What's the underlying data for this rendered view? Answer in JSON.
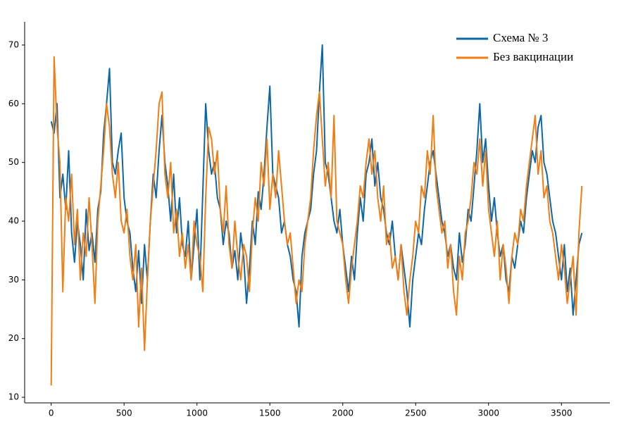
{
  "chart_data": {
    "type": "line",
    "x": [
      0,
      20,
      40,
      60,
      80,
      100,
      120,
      140,
      160,
      180,
      200,
      220,
      240,
      260,
      280,
      300,
      320,
      340,
      360,
      380,
      400,
      420,
      440,
      460,
      480,
      500,
      520,
      540,
      560,
      580,
      600,
      620,
      640,
      660,
      680,
      700,
      720,
      740,
      760,
      780,
      800,
      820,
      840,
      860,
      880,
      900,
      920,
      940,
      960,
      980,
      1000,
      1020,
      1040,
      1060,
      1080,
      1100,
      1120,
      1140,
      1160,
      1180,
      1200,
      1220,
      1240,
      1260,
      1280,
      1300,
      1320,
      1340,
      1360,
      1380,
      1400,
      1420,
      1440,
      1460,
      1480,
      1500,
      1520,
      1540,
      1560,
      1580,
      1600,
      1620,
      1640,
      1660,
      1680,
      1700,
      1720,
      1740,
      1760,
      1780,
      1800,
      1820,
      1840,
      1860,
      1880,
      1900,
      1920,
      1940,
      1960,
      1980,
      2000,
      2020,
      2040,
      2060,
      2080,
      2100,
      2120,
      2140,
      2160,
      2180,
      2200,
      2220,
      2240,
      2260,
      2280,
      2300,
      2320,
      2340,
      2360,
      2380,
      2400,
      2420,
      2440,
      2460,
      2480,
      2500,
      2520,
      2540,
      2560,
      2580,
      2600,
      2620,
      2640,
      2660,
      2680,
      2700,
      2720,
      2740,
      2760,
      2780,
      2800,
      2820,
      2840,
      2860,
      2880,
      2900,
      2920,
      2940,
      2960,
      2980,
      3000,
      3020,
      3040,
      3060,
      3080,
      3100,
      3120,
      3140,
      3160,
      3180,
      3200,
      3220,
      3240,
      3260,
      3280,
      3300,
      3320,
      3340,
      3360,
      3380,
      3400,
      3420,
      3440,
      3460,
      3480,
      3500,
      3520,
      3540,
      3560,
      3580,
      3600,
      3620,
      3640
    ],
    "series": [
      {
        "name": "Схема № 3",
        "color": "#0b67a8",
        "values": [
          57,
          55,
          60,
          44,
          48,
          42,
          52,
          38,
          33,
          40,
          36,
          30,
          42,
          35,
          38,
          33,
          42,
          45,
          55,
          60,
          66,
          50,
          48,
          52,
          55,
          44,
          40,
          38,
          32,
          28,
          35,
          26,
          36,
          30,
          40,
          48,
          44,
          52,
          58,
          50,
          46,
          40,
          48,
          38,
          44,
          36,
          34,
          40,
          30,
          36,
          42,
          30,
          45,
          60,
          52,
          48,
          50,
          44,
          42,
          36,
          40,
          38,
          32,
          35,
          30,
          38,
          34,
          26,
          32,
          40,
          36,
          45,
          42,
          48,
          56,
          63,
          48,
          46,
          44,
          38,
          40,
          36,
          34,
          30,
          28,
          22,
          34,
          38,
          40,
          42,
          48,
          52,
          62,
          70,
          50,
          48,
          44,
          40,
          38,
          42,
          36,
          32,
          28,
          34,
          30,
          38,
          44,
          40,
          48,
          50,
          54,
          46,
          50,
          44,
          42,
          38,
          36,
          40,
          34,
          30,
          36,
          32,
          28,
          22,
          30,
          34,
          38,
          36,
          42,
          46,
          50,
          52,
          48,
          44,
          40,
          38,
          34,
          36,
          32,
          30,
          38,
          33,
          36,
          42,
          40,
          46,
          52,
          60,
          50,
          54,
          46,
          40,
          44,
          38,
          34,
          36,
          30,
          28,
          34,
          32,
          36,
          40,
          38,
          44,
          48,
          52,
          50,
          56,
          58,
          50,
          48,
          44,
          40,
          38,
          34,
          30,
          36,
          28,
          32,
          24,
          30,
          36,
          38
        ]
      },
      {
        "name": "Без вакцинации",
        "color": "#f27d12",
        "values": [
          12,
          68,
          56,
          50,
          28,
          44,
          40,
          48,
          36,
          42,
          30,
          38,
          34,
          44,
          36,
          26,
          40,
          46,
          52,
          60,
          56,
          48,
          44,
          50,
          40,
          38,
          42,
          34,
          30,
          36,
          22,
          32,
          18,
          30,
          40,
          46,
          52,
          60,
          62,
          48,
          44,
          50,
          38,
          42,
          34,
          38,
          32,
          36,
          30,
          40,
          36,
          34,
          28,
          44,
          56,
          54,
          48,
          52,
          42,
          38,
          46,
          36,
          32,
          40,
          34,
          30,
          36,
          34,
          28,
          38,
          44,
          40,
          50,
          46,
          54,
          42,
          48,
          44,
          52,
          46,
          40,
          36,
          38,
          32,
          26,
          30,
          28,
          36,
          40,
          44,
          52,
          58,
          62,
          54,
          46,
          50,
          44,
          58,
          40,
          38,
          36,
          30,
          26,
          32,
          36,
          40,
          46,
          44,
          50,
          54,
          48,
          52,
          44,
          40,
          46,
          36,
          38,
          32,
          34,
          30,
          36,
          28,
          24,
          30,
          34,
          40,
          38,
          46,
          44,
          52,
          48,
          58,
          46,
          42,
          38,
          40,
          32,
          36,
          28,
          24,
          34,
          30,
          38,
          40,
          44,
          50,
          48,
          54,
          46,
          52,
          42,
          38,
          34,
          40,
          30,
          36,
          32,
          26,
          34,
          38,
          36,
          42,
          40,
          46,
          50,
          54,
          58,
          48,
          52,
          44,
          46,
          40,
          38,
          34,
          30,
          36,
          32,
          26,
          30,
          34,
          24,
          38,
          46
        ]
      }
    ],
    "xlim": [
      -182,
      3832
    ],
    "ylim": [
      9.05,
      73.95
    ],
    "xticks": [
      0,
      500,
      1000,
      1500,
      2000,
      2500,
      3000,
      3500
    ],
    "yticks": [
      10,
      20,
      30,
      40,
      50,
      60,
      70
    ],
    "legend": "upper right"
  }
}
